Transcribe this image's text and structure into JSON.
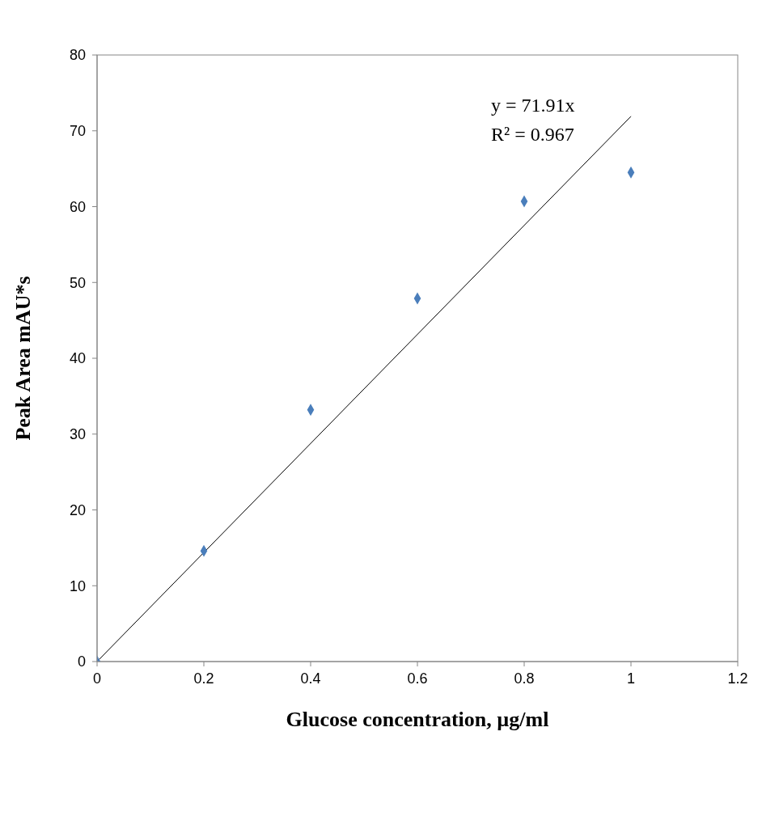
{
  "chart_data": {
    "type": "scatter",
    "xlabel": "Glucose concentration, µg/ml",
    "ylabel": "Peak Area mAU*s",
    "xlim": [
      0,
      1.2
    ],
    "xticks": [
      0,
      0.2,
      0.4,
      0.6,
      0.8,
      1,
      1.2
    ],
    "ylim": [
      0,
      80
    ],
    "yticks": [
      0,
      10,
      20,
      30,
      40,
      50,
      60,
      70,
      80
    ],
    "grid": false,
    "legend": false,
    "series": [
      {
        "type": "scatter",
        "x": [
          0,
          0.2,
          0.4,
          0.6,
          0.8,
          1
        ],
        "values": [
          0,
          14.6,
          33.2,
          47.9,
          60.7,
          64.5
        ],
        "color": "#4a7ebb",
        "marker": "diamond"
      },
      {
        "type": "line",
        "x": [
          0,
          1
        ],
        "values": [
          0,
          71.91
        ],
        "color": "#000000",
        "marker": "none",
        "line_style": "solid"
      }
    ],
    "annotations": [
      "y = 71.91x",
      "R² = 0.967"
    ]
  }
}
